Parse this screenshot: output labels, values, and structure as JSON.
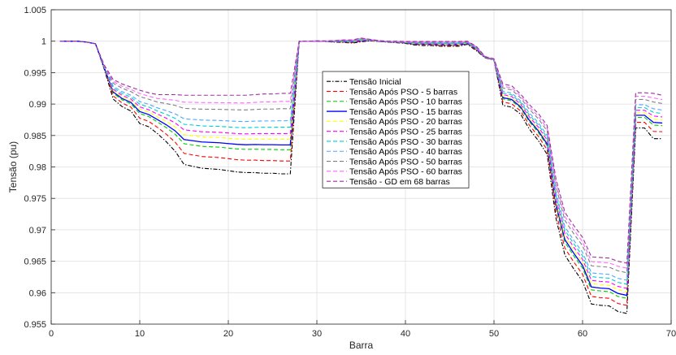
{
  "chart_data": {
    "type": "line",
    "title": "",
    "xlabel": "Barra",
    "ylabel": "Tensão (pu)",
    "xlim": [
      0,
      70
    ],
    "ylim": [
      0.955,
      1.005
    ],
    "xticks": [
      0,
      10,
      20,
      30,
      40,
      50,
      60,
      70
    ],
    "yticks": [
      0.955,
      0.96,
      0.965,
      0.97,
      0.975,
      0.98,
      0.985,
      0.99,
      0.995,
      1,
      1.005
    ],
    "ytick_labels": [
      "0.955",
      "0.96",
      "0.965",
      "0.97",
      "0.975",
      "0.98",
      "0.985",
      "0.99",
      "0.995",
      "1",
      "1.005"
    ],
    "grid": true,
    "legend_position": "center",
    "x": [
      1,
      2,
      3,
      4,
      5,
      6,
      7,
      8,
      9,
      10,
      11,
      12,
      13,
      14,
      15,
      16,
      17,
      18,
      19,
      20,
      21,
      22,
      23,
      24,
      25,
      26,
      27,
      28,
      29,
      30,
      31,
      32,
      33,
      34,
      35,
      36,
      37,
      38,
      39,
      40,
      41,
      42,
      43,
      44,
      45,
      46,
      47,
      48,
      49,
      50,
      51,
      52,
      53,
      54,
      55,
      56,
      57,
      58,
      59,
      60,
      61,
      62,
      63,
      64,
      65,
      66,
      67,
      68,
      69
    ],
    "series": [
      {
        "name": "Tensão Inicial",
        "color": "#000000",
        "dash": "dashdot",
        "s": 0.0
      },
      {
        "name": "Tensão Após PSO - 5 barras",
        "color": "#ff0000",
        "dash": "dashed",
        "s": 0.16
      },
      {
        "name": "Tensão Após PSO - 10 barras",
        "color": "#00cc00",
        "dash": "dashed",
        "s": 0.3
      },
      {
        "name": "Tensão Após PSO - 15 barras",
        "color": "#0000ff",
        "dash": "solid",
        "s": 0.36
      },
      {
        "name": "Tensão Após PSO - 20 barras",
        "color": "#ffff00",
        "dash": "dashed",
        "s": 0.43
      },
      {
        "name": "Tensão Após PSO - 25 barras",
        "color": "#ff00ff",
        "dash": "dashed",
        "s": 0.5
      },
      {
        "name": "Tensão Após PSO - 30 barras",
        "color": "#00cccc",
        "dash": "dashed",
        "s": 0.58
      },
      {
        "name": "Tensão Após PSO - 40 barras",
        "color": "#4da6ff",
        "dash": "dashed",
        "s": 0.66
      },
      {
        "name": "Tensão Após PSO - 50 barras",
        "color": "#808080",
        "dash": "dashed",
        "s": 0.81
      },
      {
        "name": "Tensão Após PSO - 60 barras",
        "color": "#ff66ff",
        "dash": "dashed",
        "s": 0.9
      },
      {
        "name": "Tensão - GD em 68 barras",
        "color": "#993399",
        "dash": "dashed",
        "s": 1.0
      }
    ],
    "base_min": [
      1.0,
      1.0,
      1.0,
      0.99985,
      0.9996,
      0.9955,
      0.9908,
      0.9896,
      0.9889,
      0.9869,
      0.9864,
      0.9853,
      0.984,
      0.9825,
      0.9804,
      0.9801,
      0.9798,
      0.9797,
      0.9796,
      0.9794,
      0.9792,
      0.9791,
      0.9791,
      0.979,
      0.979,
      0.9789,
      0.9789,
      0.99995,
      1.0,
      1.0,
      0.99995,
      0.99985,
      0.9998,
      0.9997,
      0.9999,
      1.00005,
      0.99995,
      0.99985,
      0.99975,
      0.99965,
      0.9994,
      0.9993,
      0.9993,
      0.9992,
      0.9992,
      0.9992,
      0.9995,
      0.9985,
      0.99735,
      0.997,
      0.9898,
      0.9895,
      0.9884,
      0.986,
      0.9842,
      0.982,
      0.9718,
      0.966,
      0.9638,
      0.9618,
      0.9582,
      0.958,
      0.9579,
      0.957,
      0.9567,
      0.9862,
      0.9862,
      0.9845,
      0.9845
    ],
    "base_max": [
      1.0,
      1.0,
      1.0,
      0.99985,
      0.9996,
      0.9962,
      0.9939,
      0.9932,
      0.9927,
      0.9922,
      0.9918,
      0.9915,
      0.9915,
      0.9915,
      0.9914,
      0.9914,
      0.9914,
      0.9914,
      0.9914,
      0.9914,
      0.9914,
      0.9914,
      0.9915,
      0.9916,
      0.9916,
      0.9917,
      0.9917,
      1.0,
      1.0,
      1.00005,
      1.00005,
      1.0001,
      1.0002,
      1.0002,
      1.0005,
      1.0003,
      1.0001,
      1.0,
      1.0,
      0.99995,
      0.99995,
      0.99995,
      0.99995,
      0.99995,
      0.99995,
      0.99995,
      1.0,
      0.9992,
      0.99755,
      0.9972,
      0.9932,
      0.9929,
      0.9916,
      0.9899,
      0.9885,
      0.9866,
      0.9781,
      0.9728,
      0.9707,
      0.9688,
      0.9657,
      0.9656,
      0.9655,
      0.965,
      0.9647,
      0.9918,
      0.9918,
      0.9917,
      0.9914
    ]
  }
}
